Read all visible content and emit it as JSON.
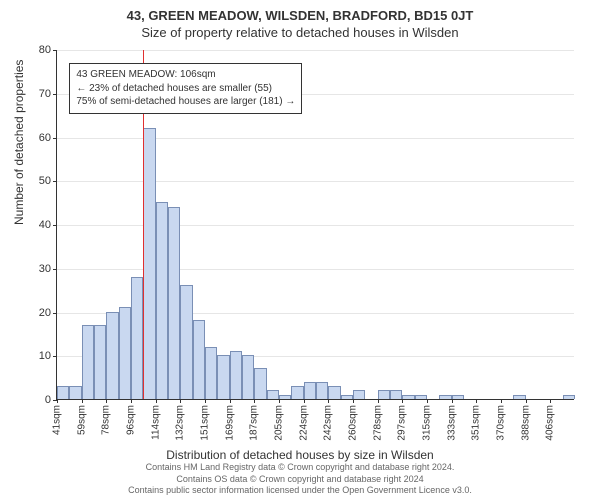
{
  "titles": {
    "main": "43, GREEN MEADOW, WILSDEN, BRADFORD, BD15 0JT",
    "sub": "Size of property relative to detached houses in Wilsden",
    "y_axis": "Number of detached properties",
    "x_axis": "Distribution of detached houses by size in Wilsden"
  },
  "chart": {
    "type": "histogram",
    "bar_fill": "#c9d8f0",
    "bar_stroke": "#7a8fb5",
    "background": "#ffffff",
    "grid_color": "#333333",
    "ylim": [
      0,
      80
    ],
    "ytick_step": 10,
    "x_categories": [
      "41sqm",
      "59sqm",
      "78sqm",
      "96sqm",
      "114sqm",
      "132sqm",
      "151sqm",
      "169sqm",
      "187sqm",
      "205sqm",
      "224sqm",
      "242sqm",
      "260sqm",
      "278sqm",
      "297sqm",
      "315sqm",
      "333sqm",
      "351sqm",
      "370sqm",
      "388sqm",
      "406sqm"
    ],
    "counts": [
      3,
      3,
      17,
      17,
      20,
      21,
      28,
      62,
      45,
      44,
      26,
      18,
      12,
      10,
      11,
      10,
      7,
      2,
      1,
      3,
      4,
      4,
      3,
      1,
      2,
      0,
      2,
      2,
      1,
      1,
      0,
      1,
      1,
      0,
      0,
      0,
      0,
      1,
      0,
      0,
      0,
      1
    ],
    "ref_line": {
      "bin_index_at": 7,
      "color": "#e03030"
    },
    "annotation": {
      "lines": [
        "43 GREEN MEADOW: 106sqm",
        "← 23% of detached houses are smaller (55)",
        "75% of semi-detached houses are larger (181) →"
      ],
      "left_bin": 1,
      "top_value": 77
    }
  },
  "footer": {
    "line1": "Contains HM Land Registry data © Crown copyright and database right 2024.",
    "line2": "Contains OS data © Crown copyright and database right 2024",
    "line3": "Contains public sector information licensed under the Open Government Licence v3.0."
  }
}
